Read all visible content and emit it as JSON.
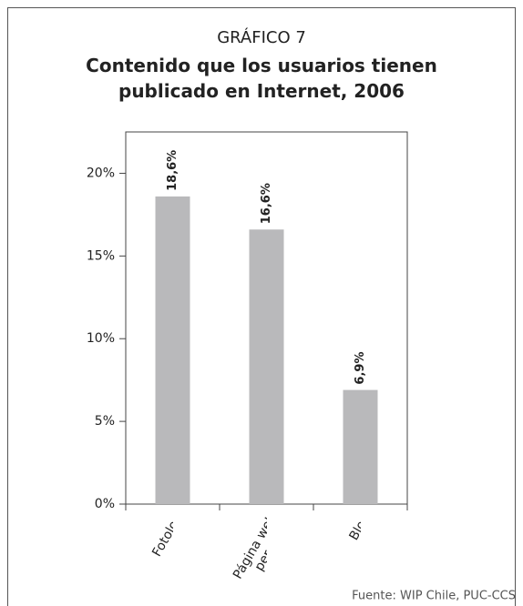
{
  "chart_data": {
    "type": "bar",
    "supertitle": "GRÁFICO 7",
    "title": "Contenido que los usuarios tienen publicado en Internet, 2006",
    "categories": [
      "Fotolog",
      "Página web personal",
      "Blog"
    ],
    "values": [
      18.6,
      16.6,
      6.9
    ],
    "value_labels": [
      "18,6%",
      "16,6%",
      "6,9%"
    ],
    "color": "#b9b9bb",
    "ylim": [
      0,
      22.5
    ],
    "yticks": [
      {
        "value": 0,
        "label": "0%"
      },
      {
        "value": 5,
        "label": "5%"
      },
      {
        "value": 10,
        "label": "10%"
      },
      {
        "value": 15,
        "label": "15%"
      },
      {
        "value": 20,
        "label": "20%"
      }
    ],
    "source": "Fuente: WIP Chile, PUC-CCS"
  }
}
